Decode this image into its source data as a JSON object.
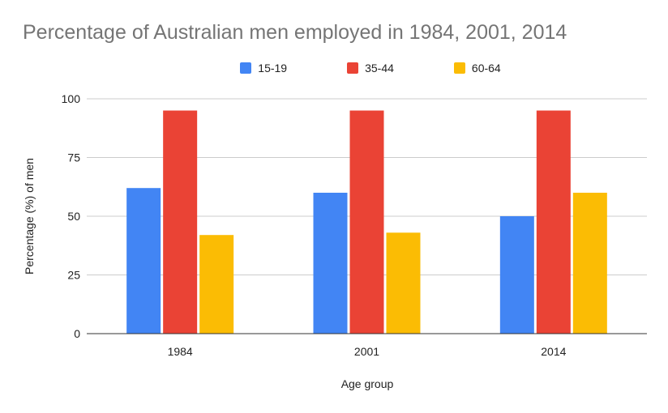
{
  "chart_data": {
    "type": "bar",
    "title": "Percentage of Australian men employed in 1984, 2001, 2014",
    "xlabel": "Age group",
    "ylabel": "Percentage (%) of men",
    "categories": [
      "1984",
      "2001",
      "2014"
    ],
    "series": [
      {
        "name": "15-19",
        "color": "#4285f4",
        "values": [
          62,
          60,
          50
        ]
      },
      {
        "name": "35-44",
        "color": "#ea4335",
        "values": [
          95,
          95,
          95
        ]
      },
      {
        "name": "60-64",
        "color": "#fbbc04",
        "values": [
          42,
          43,
          60
        ]
      }
    ],
    "ylim": [
      0,
      100
    ],
    "yticks": [
      "0",
      "25",
      "50",
      "75",
      "100"
    ],
    "grid": true,
    "legend_position": "top"
  }
}
